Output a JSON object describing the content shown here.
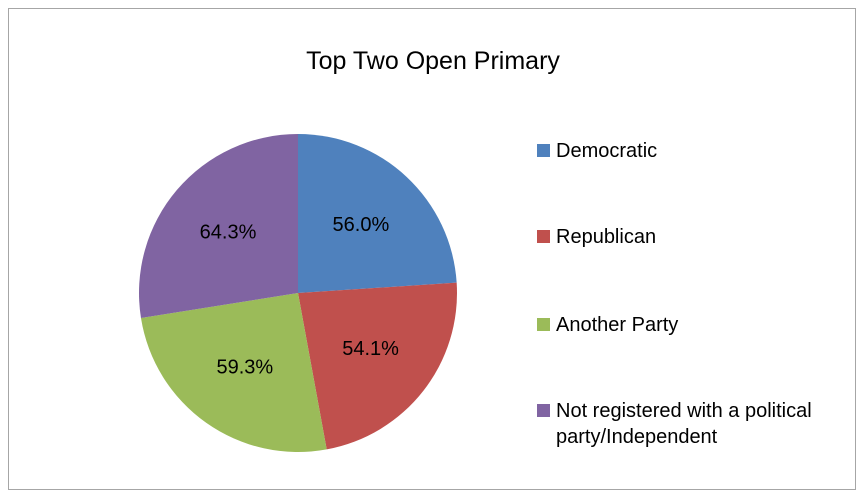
{
  "chart_data": {
    "type": "pie",
    "title": "Top Two Open Primary",
    "categories": [
      "Democratic",
      "Republican",
      "Another Party",
      "Not registered with a political party/Independent"
    ],
    "values": [
      56.0,
      54.1,
      59.3,
      64.3
    ],
    "data_labels": [
      "56.0%",
      "54.1%",
      "59.3%",
      "64.3%"
    ],
    "colors": [
      "#4f81bd",
      "#c0504d",
      "#9bbb59",
      "#8064a2"
    ],
    "legend_position": "right"
  }
}
